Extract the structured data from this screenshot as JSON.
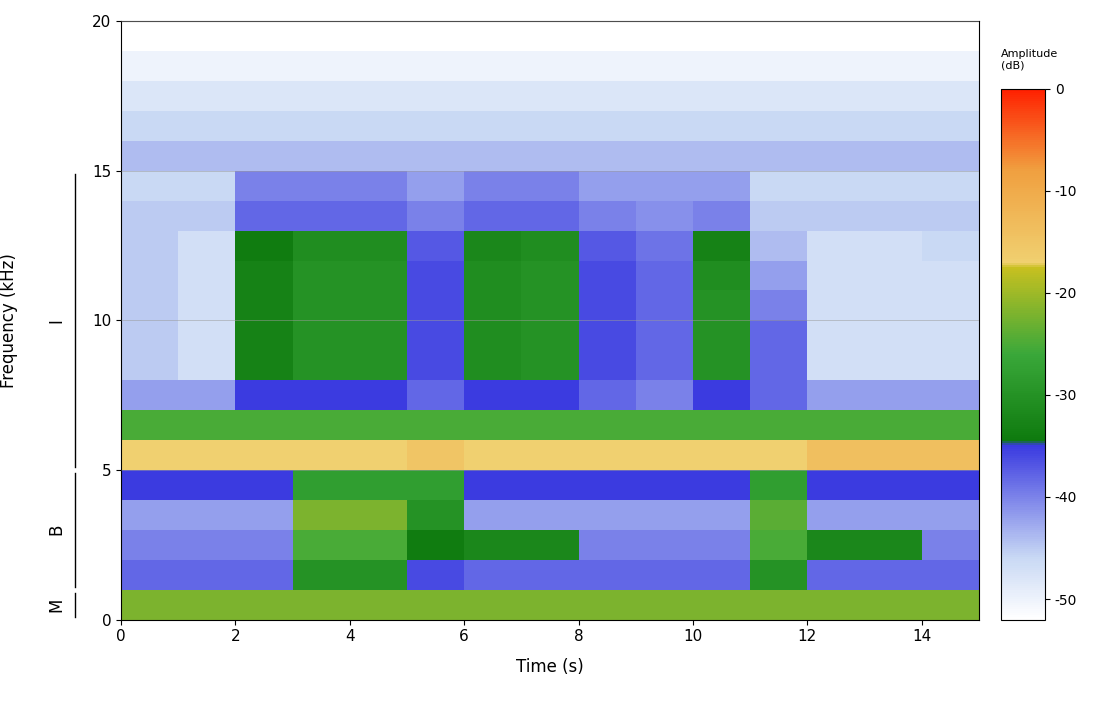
{
  "chart_data": {
    "type": "heatmap",
    "xlabel": "Time (s)",
    "ylabel": "Frequency (kHz)",
    "xlim": [
      0,
      15
    ],
    "ylim": [
      0,
      20
    ],
    "xticks": [
      0,
      2,
      4,
      6,
      8,
      10,
      12,
      14
    ],
    "yticks": [
      0,
      5,
      10,
      15,
      20
    ],
    "grid": true,
    "time_edges": [
      0,
      1,
      2,
      3,
      4,
      5,
      6,
      7,
      8,
      9,
      10,
      11,
      12,
      13,
      14,
      15
    ],
    "freq_edges": [
      0,
      1,
      2,
      3,
      4,
      5,
      6,
      7,
      8,
      9,
      10,
      11,
      12,
      13,
      14,
      15,
      16,
      17,
      18,
      19,
      20
    ],
    "cells": [
      [
        -22,
        -22,
        -22,
        -22,
        -22,
        -22,
        -22,
        -22,
        -22,
        -22,
        -22,
        -22,
        -22,
        -22,
        -22
      ],
      [
        -38,
        -38,
        -38,
        -30,
        -30,
        -36,
        -38,
        -38,
        -38,
        -38,
        -38,
        -30,
        -38,
        -38,
        -38
      ],
      [
        -40,
        -40,
        -40,
        -25,
        -25,
        -34,
        -32,
        -32,
        -40,
        -40,
        -40,
        -25,
        -32,
        -32,
        -40
      ],
      [
        -42,
        -42,
        -42,
        -22,
        -22,
        -30,
        -42,
        -42,
        -42,
        -42,
        -42,
        -24,
        -42,
        -42,
        -42
      ],
      [
        -35,
        -35,
        -35,
        -28,
        -28,
        -28,
        -35,
        -35,
        -35,
        -35,
        -35,
        -28,
        -35,
        -35,
        -35
      ],
      [
        -17,
        -17,
        -17,
        -17,
        -17,
        -15,
        -17,
        -17,
        -17,
        -17,
        -17,
        -17,
        -14,
        -14,
        -14
      ],
      [
        -25,
        -25,
        -25,
        -25,
        -25,
        -25,
        -25,
        -25,
        -25,
        -25,
        -25,
        -25,
        -25,
        -25,
        -25
      ],
      [
        -42,
        -42,
        -35,
        -35,
        -35,
        -38,
        -35,
        -35,
        -38,
        -40,
        -35,
        -38,
        -42,
        -42,
        -42
      ],
      [
        -45,
        -47,
        -33,
        -30,
        -30,
        -36,
        -31,
        -30,
        -36,
        -38,
        -30,
        -38,
        -47,
        -47,
        -47
      ],
      [
        -45,
        -47,
        -33,
        -30,
        -30,
        -36,
        -31,
        -30,
        -36,
        -38,
        -30,
        -38,
        -47,
        -47,
        -47
      ],
      [
        -45,
        -47,
        -33,
        -30,
        -30,
        -36,
        -31,
        -30,
        -36,
        -38,
        -30,
        -40,
        -47,
        -47,
        -47
      ],
      [
        -45,
        -47,
        -33,
        -30,
        -30,
        -36,
        -31,
        -30,
        -36,
        -38,
        -31,
        -42,
        -47,
        -47,
        -47
      ],
      [
        -45,
        -47,
        -34,
        -31,
        -31,
        -37,
        -32,
        -31,
        -37,
        -39,
        -33,
        -44,
        -47,
        -47,
        -46
      ],
      [
        -45,
        -45,
        -38,
        -38,
        -38,
        -40,
        -38,
        -38,
        -40,
        -41,
        -40,
        -45,
        -45,
        -45,
        -45
      ],
      [
        -46,
        -46,
        -40,
        -40,
        -40,
        -42,
        -40,
        -40,
        -42,
        -42,
        -42,
        -46,
        -46,
        -46,
        -46
      ],
      [
        -44,
        -44,
        -44,
        -44,
        -44,
        -44,
        -44,
        -44,
        -44,
        -44,
        -44,
        -44,
        -44,
        -44,
        -44
      ],
      [
        -46,
        -46,
        -46,
        -46,
        -46,
        -46,
        -46,
        -46,
        -46,
        -46,
        -46,
        -46,
        -46,
        -46,
        -46
      ],
      [
        -48,
        -48,
        -48,
        -48,
        -48,
        -48,
        -48,
        -48,
        -48,
        -48,
        -48,
        -48,
        -48,
        -48,
        -48
      ],
      [
        -50,
        -50,
        -50,
        -50,
        -50,
        -50,
        -50,
        -50,
        -50,
        -50,
        -50,
        -50,
        -50,
        -50,
        -50
      ],
      [
        -52,
        -52,
        -52,
        -52,
        -52,
        -52,
        -52,
        -52,
        -52,
        -52,
        -52,
        -52,
        -52,
        -52,
        -52
      ]
    ],
    "colorbar_label": "Amplitude\n(dB)",
    "colorbar_range": [
      -52,
      0
    ],
    "colorbar_ticks": [
      {
        "value": 0,
        "label": "0"
      },
      {
        "value": -10,
        "label": "-10"
      },
      {
        "value": -20,
        "label": "-20"
      },
      {
        "value": -30,
        "label": "-30"
      },
      {
        "value": -40,
        "label": "-40"
      },
      {
        "value": -50,
        "label": "-50"
      }
    ],
    "bands": [
      {
        "label": "M",
        "from": 0,
        "to": 1
      },
      {
        "label": "B",
        "from": 1,
        "to": 5
      },
      {
        "label": "I",
        "from": 5,
        "to": 15
      }
    ]
  }
}
